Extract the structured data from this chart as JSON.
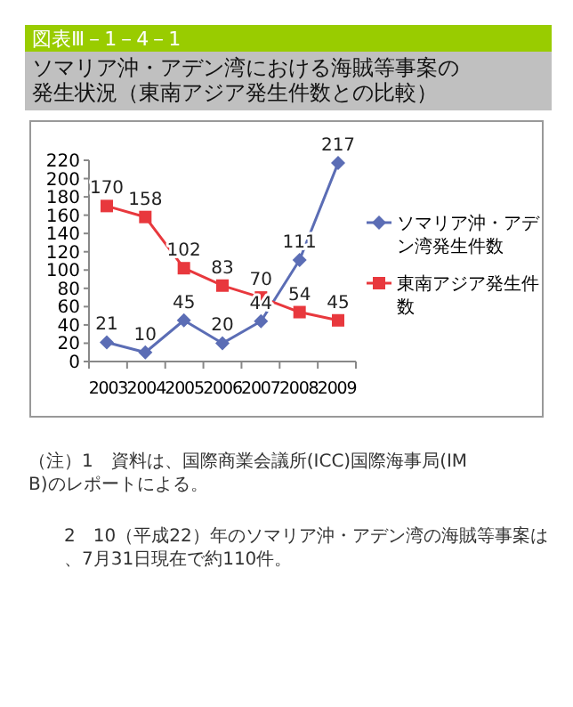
{
  "chart_data": {
    "type": "line",
    "title": "図表Ⅲ－1－4－1",
    "subtitle": "ソマリア沖・アデン湾における海賊等事案の発生状況（東南アジア発生件数との比較）",
    "categories": [
      "2003",
      "2004",
      "2005",
      "2006",
      "2007",
      "2008",
      "2009"
    ],
    "series": [
      {
        "name": "ソマリア沖・アデン湾発生件数",
        "color": "#5b6db5",
        "marker": "diamond",
        "values": [
          21,
          10,
          45,
          20,
          44,
          111,
          217
        ]
      },
      {
        "name": "東南アジア発生件数",
        "color": "#e8383d",
        "marker": "square",
        "values": [
          170,
          158,
          102,
          83,
          70,
          54,
          45
        ]
      }
    ],
    "ylim": [
      0,
      220
    ],
    "yticks": [
      0,
      20,
      40,
      60,
      80,
      100,
      120,
      140,
      160,
      180,
      200,
      220
    ],
    "grid": false,
    "legend": "right",
    "data_labels": true,
    "annotations": [
      "（注）1　資料は、国際商業会議所(ICC)国際海事局(IMB)のレポートによる。",
      "2　10（平成22）年のソマリア沖・アデン湾の海賊等事案は、7月31日現在で約110件。"
    ]
  }
}
